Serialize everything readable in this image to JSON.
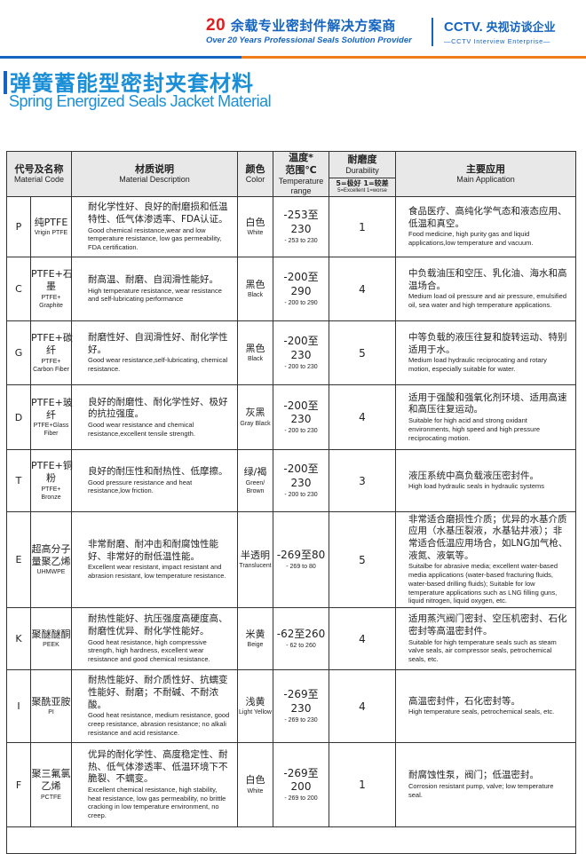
{
  "header": {
    "brand_number": "20",
    "brand_cn": "余载专业密封件解决方案商",
    "brand_en": "Over 20 Years Professional Seals Solution Provider",
    "cctv_logo": "CCTV.",
    "cctv_cn": "央视访谈企业",
    "cctv_en": "—CCTV Interview Enterprise—"
  },
  "title_cn": "弹簧蓄能型密封夹套材料",
  "title_en": "Spring Energized Seals Jacket Material",
  "colors": {
    "accent_blue": "#1565c0",
    "title_blue": "#1a8fd8",
    "accent_orange": "#ef7d1a",
    "brand_red": "#e02020"
  },
  "table": {
    "headers": {
      "code_cn": "代号及名称",
      "code_en": "Material Code",
      "desc_cn": "材质说明",
      "desc_en": "Material Description",
      "color_cn": "颜色",
      "color_en": "Color",
      "temp_cn1": "温度*",
      "temp_cn2": "范围℃",
      "temp_en": "Temperature range",
      "dur_cn": "耐磨度",
      "dur_en": "Durability",
      "dur_scale_cn": "5=极好  1=较差",
      "dur_scale_en": "5=Excellent 1=worse",
      "app_cn": "主要应用",
      "app_en": "Main Application"
    },
    "rows": [
      {
        "code": "P",
        "name_cn": "纯PTFE",
        "name_en": "Vrigin PTFE",
        "desc_cn": "耐化学性好、良好的耐磨损和低温特性、低气体渗透率、FDA认证。",
        "desc_en": "Good chemical resistance,wear and low temperature resistance, low gas permeability, FDA certification.",
        "color_cn": "白色",
        "color_en": "White",
        "temp_cn": "-253至230",
        "temp_en": "- 253 to 230",
        "durability": "1",
        "app_cn": "食品医疗、高纯化学气态和液态应用、低温和真空。",
        "app_en": "Food medicine, high purity gas and liquid applications,low temperature and vacuum."
      },
      {
        "code": "C",
        "name_cn": "PTFE+石墨",
        "name_en": "PTFE+ Graphite",
        "desc_cn": "耐高温、耐磨、自润滑性能好。",
        "desc_en": "High temperature resistance, wear resistance and self-lubricating performance",
        "color_cn": "黑色",
        "color_en": "Black",
        "temp_cn": "-200至290",
        "temp_en": "- 200 to 290",
        "durability": "4",
        "app_cn": "中负载油压和空压、乳化油、海水和高温场合。",
        "app_en": "Medium load oil pressure and air pressure, emulsified oil, sea water and high temperature applications."
      },
      {
        "code": "G",
        "name_cn": "PTFE+碳纤",
        "name_en": "PTFE+ Carbon Fiber",
        "desc_cn": "耐磨性好、自润滑性好、耐化学性好。",
        "desc_en": "Good wear resistance,self-lubricating, chemical resistance.",
        "color_cn": "黑色",
        "color_en": "Black",
        "temp_cn": "-200至230",
        "temp_en": "- 200 to 230",
        "durability": "5",
        "app_cn": "中等负载的液压往复和旋转运动、特别适用于水。",
        "app_en": "Medium load hydraulic reciprocating and rotary motion, especially suitable for water."
      },
      {
        "code": "D",
        "name_cn": "PTFE+玻纤",
        "name_en": "PTFE+Glass Fiber",
        "desc_cn": "良好的耐磨性、耐化学性好、极好的抗拉强度。",
        "desc_en": "Good wear resistance and chemical resistance,excellent tensile strength.",
        "color_cn": "灰黑",
        "color_en": "Gray Black",
        "temp_cn": "-200至230",
        "temp_en": "- 200 to 230",
        "durability": "4",
        "app_cn": "适用于强酸和强氧化剂环境、适用高速和高压往复运动。",
        "app_en": "Suitable for high acid and strong oxidant environments, high speed and high pressure reciprocating motion."
      },
      {
        "code": "T",
        "name_cn": "PTFE+铜粉",
        "name_en": "PTFE+ Bronze",
        "desc_cn": "良好的耐压性和耐热性、低摩擦。",
        "desc_en": "Good pressure resistance and heat resistance,low friction.",
        "color_cn": "绿/褐",
        "color_en": "Green/ Brown",
        "temp_cn": "-200至230",
        "temp_en": "- 200 to 230",
        "durability": "3",
        "app_cn": "液压系统中高负载液压密封件。",
        "app_en": "High load hydraulic seals in hydraulic systems"
      },
      {
        "code": "E",
        "name_cn": "超高分子量聚乙烯",
        "name_en": "UHMWPE",
        "desc_cn": "非常耐磨、耐冲击和耐腐蚀性能好、非常好的耐低温性能。",
        "desc_en": "Excellent wear resistant, impact resistant and abrasion resistant, low temperature resistance.",
        "color_cn": "半透明",
        "color_en": "Translucent",
        "temp_cn": "-269至80",
        "temp_en": "- 269 to 80",
        "durability": "5",
        "app_cn": "非常适合磨损性介质；优异的水基介质应用（水基压裂液，水基钻井液）；非常适合低温应用场合，如LNG加气枪、液氮、液氧等。",
        "app_en": "Suitalbe for abrasive media; excellent water-based media applications (water-based fracturing fluids, water-based drilling fluids); Suitable for low temperature applications such as LNG filling guns, liquid nitrogen, liquid oxygen, etc."
      },
      {
        "code": "K",
        "name_cn": "聚醚醚酮",
        "name_en": "PEEK",
        "desc_cn": "耐热性能好、抗压强度高硬度高、耐磨性优异、耐化学性能好。",
        "desc_en": "Good heat resistance, high compressive strength, high hardness, excellent wear resistance and good chemical resistance.",
        "color_cn": "米黄",
        "color_en": "Beige",
        "temp_cn": "-62至260",
        "temp_en": "- 62 to 260",
        "durability": "4",
        "app_cn": "适用蒸汽阀门密封、空压机密封、石化密封等高温密封件。",
        "app_en": "Suitable for high temperature seals such as steam valve seals, air compressor seals, petrochemical seals, etc."
      },
      {
        "code": "I",
        "name_cn": "聚酰亚胺",
        "name_en": "PI",
        "desc_cn": "耐热性能好、耐介质性好、抗蠕变性能好、耐磨；不耐碱、不耐浓酸。",
        "desc_en": "Good heat resistance, medium resistance, good creep resistance, abrasion resistance; no alkali resistance and acid resistance.",
        "color_cn": "浅黄",
        "color_en": "Light Yellow",
        "temp_cn": "-269至230",
        "temp_en": "- 269 to 230",
        "durability": "4",
        "app_cn": "高温密封件，石化密封等。",
        "app_en": "High temperature seals, petrochemical seals, etc."
      },
      {
        "code": "F",
        "name_cn": "聚三氟氯乙烯",
        "name_en": "PCTFE",
        "desc_cn": "优异的耐化学性、高度稳定性、耐热、低气体渗透率、低温环境下不脆裂、不蠕变。",
        "desc_en": "Excellent chemical resistance, high stability, heat resistance, low gas permeability, no brittle cracking in low temperature environment, no creep.",
        "color_cn": "白色",
        "color_en": "White",
        "temp_cn": "-269至200",
        "temp_en": "- 269 to 200",
        "durability": "1",
        "app_cn": "耐腐蚀性泵，阀门；低温密封。",
        "app_en": "Corrosion resistant pump, valve; low temperature seal."
      }
    ]
  }
}
